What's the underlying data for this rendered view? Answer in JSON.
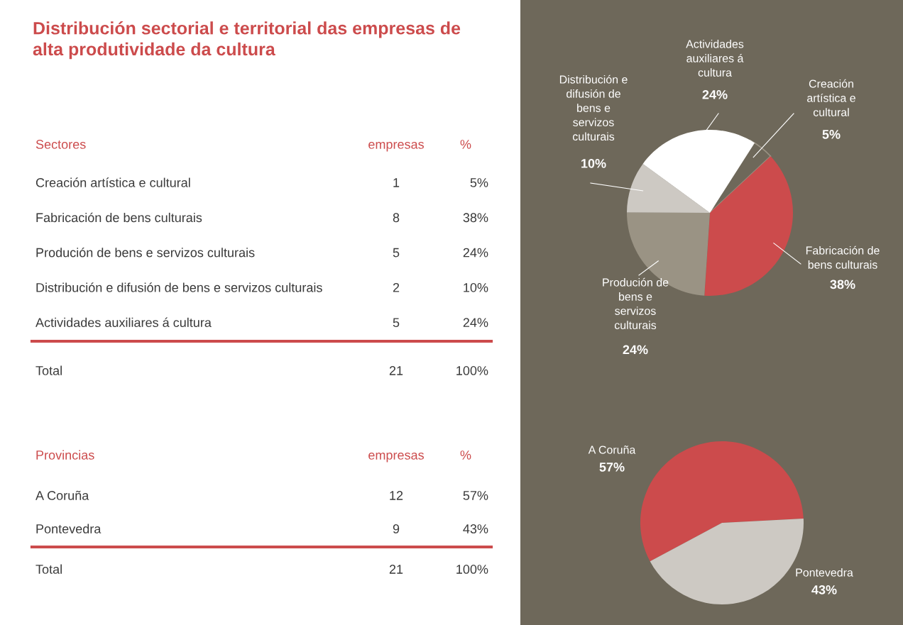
{
  "chart_data": [
    {
      "type": "other",
      "title": "Distribución sectorial e territorial das empresas de\nalta produtividade da cultura",
      "xlabel": "Sectores",
      "categories": [
        "Creación artística e cultural",
        "Fabricación de bens culturais",
        "Produción de bens e servizos culturais",
        "Distribución e difusión de bens e servizos culturais",
        "Actividades auxiliares á cultura"
      ],
      "series": [
        {
          "name": "empresas",
          "values": [
            1,
            8,
            5,
            2,
            5
          ]
        }
      ],
      "data_labels": true,
      "annotations": [
        "%",
        "Total"
      ],
      "totals": [
        "21",
        "100%"
      ]
    },
    {
      "type": "pie",
      "categories": [
        "Creación\nartística e\ncultural",
        "Fabricación de\nbens culturais",
        "Produción de\nbens e\nservizos\nculturais",
        "Distribución e\ndifusión de\nbens e\nservizos\nculturais",
        "Actividades\nauxiliares á\ncultura"
      ],
      "values": [
        5,
        38,
        24,
        10,
        24
      ],
      "value_labels": [
        "5%",
        "38%",
        "24%",
        "10%",
        "24%"
      ],
      "colors": [
        "#6e685a",
        "#cc4b4c",
        "#9a9384",
        "#cdc9c3",
        "#ffffff"
      ]
    },
    {
      "type": "other",
      "xlabel": "Provincias",
      "categories": [
        "A Coruña",
        "Pontevedra"
      ],
      "series": [
        {
          "name": "empresas",
          "values": [
            12,
            9
          ]
        }
      ],
      "data_labels": true,
      "annotations": [
        "%",
        "Total"
      ],
      "totals": [
        "21",
        "100%"
      ]
    },
    {
      "type": "pie",
      "categories": [
        "A Coruña",
        "Pontevedra"
      ],
      "values": [
        57,
        43
      ],
      "value_labels": [
        "57%",
        "43%"
      ],
      "colors": [
        "#cc4b4c",
        "#cdc9c3"
      ]
    }
  ]
}
